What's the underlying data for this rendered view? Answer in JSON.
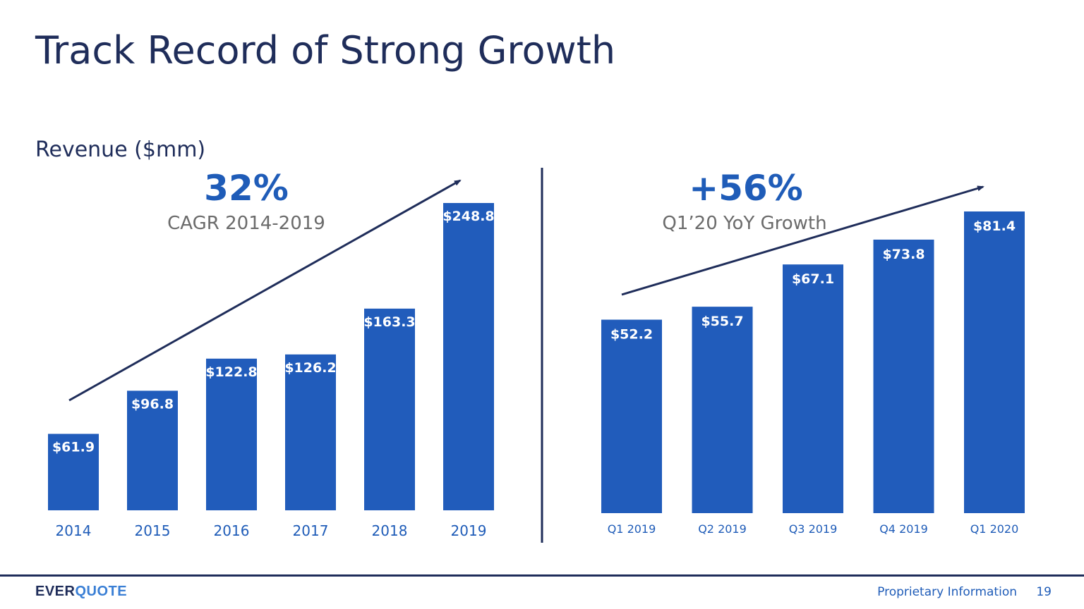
{
  "slide": {
    "title": "Track Record of Strong Growth",
    "subtitle": "Revenue ($mm)",
    "footer_text": "Proprietary Information",
    "page_number": "19",
    "logo_part1": "EVER",
    "logo_part2": "QUOTE"
  },
  "left_stat": {
    "value": "32%",
    "caption": "CAGR 2014-2019"
  },
  "right_stat": {
    "value": "+56%",
    "caption": "Q1’20 YoY Growth"
  },
  "colors": {
    "bar": "#215cbb",
    "navy": "#1f2d5a",
    "label": "#ffffff"
  },
  "chart_data": [
    {
      "type": "bar",
      "categories": [
        "2014",
        "2015",
        "2016",
        "2017",
        "2018",
        "2019"
      ],
      "values": [
        61.9,
        96.8,
        122.8,
        126.2,
        163.3,
        248.8
      ],
      "labels": [
        "$61.9",
        "$96.8",
        "$122.8",
        "$126.2",
        "$163.3",
        "$248.8"
      ],
      "title": "",
      "xlabel": "",
      "ylabel": "",
      "ylim": [
        0,
        248.8
      ],
      "grid": false
    },
    {
      "type": "bar",
      "categories": [
        "Q1 2019",
        "Q2 2019",
        "Q3 2019",
        "Q4 2019",
        "Q1 2020"
      ],
      "values": [
        52.2,
        55.7,
        67.1,
        73.8,
        81.4
      ],
      "labels": [
        "$52.2",
        "$55.7",
        "$67.1",
        "$73.8",
        "$81.4"
      ],
      "title": "",
      "xlabel": "",
      "ylabel": "",
      "ylim": [
        0,
        81.4
      ],
      "grid": false
    }
  ]
}
